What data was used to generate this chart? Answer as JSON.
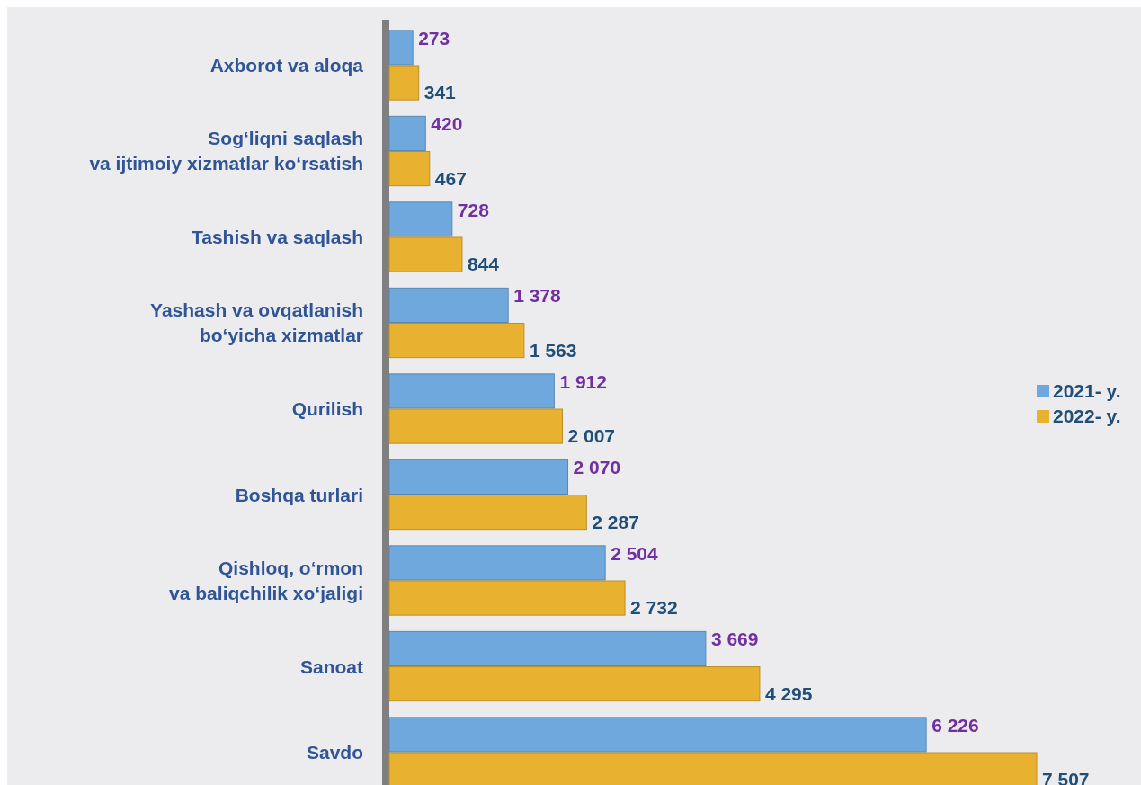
{
  "chart_data": {
    "type": "bar",
    "orientation": "horizontal",
    "categories": [
      "Axborot va aloqa",
      "Sog‘liqni saqlash\nva ijtimoiy xizmatlar ko‘rsatish",
      "Tashish va saqlash",
      "Yashash va ovqatlanish\nbo‘yicha xizmatlar",
      "Qurilish",
      "Boshqa turlari",
      "Qishloq, o‘rmon\nva baliqchilik xo‘jaligi",
      "Sanoat",
      "Savdo"
    ],
    "series": [
      {
        "name": "2021- y.",
        "color": "#6fa8dc",
        "values": [
          273,
          420,
          728,
          1378,
          1912,
          2070,
          2504,
          3669,
          6226
        ],
        "value_labels": [
          "273",
          "420",
          "728",
          "1 378",
          "1 912",
          "2 070",
          "2 504",
          "3 669",
          "6 226"
        ]
      },
      {
        "name": "2022- y.",
        "color": "#e8b230",
        "values": [
          341,
          467,
          844,
          1563,
          2007,
          2287,
          2732,
          4295,
          7507
        ],
        "value_labels": [
          "341",
          "467",
          "844",
          "1 563",
          "2 007",
          "2 287",
          "2 732",
          "4 295",
          "7 507"
        ]
      }
    ],
    "legend": "right"
  }
}
